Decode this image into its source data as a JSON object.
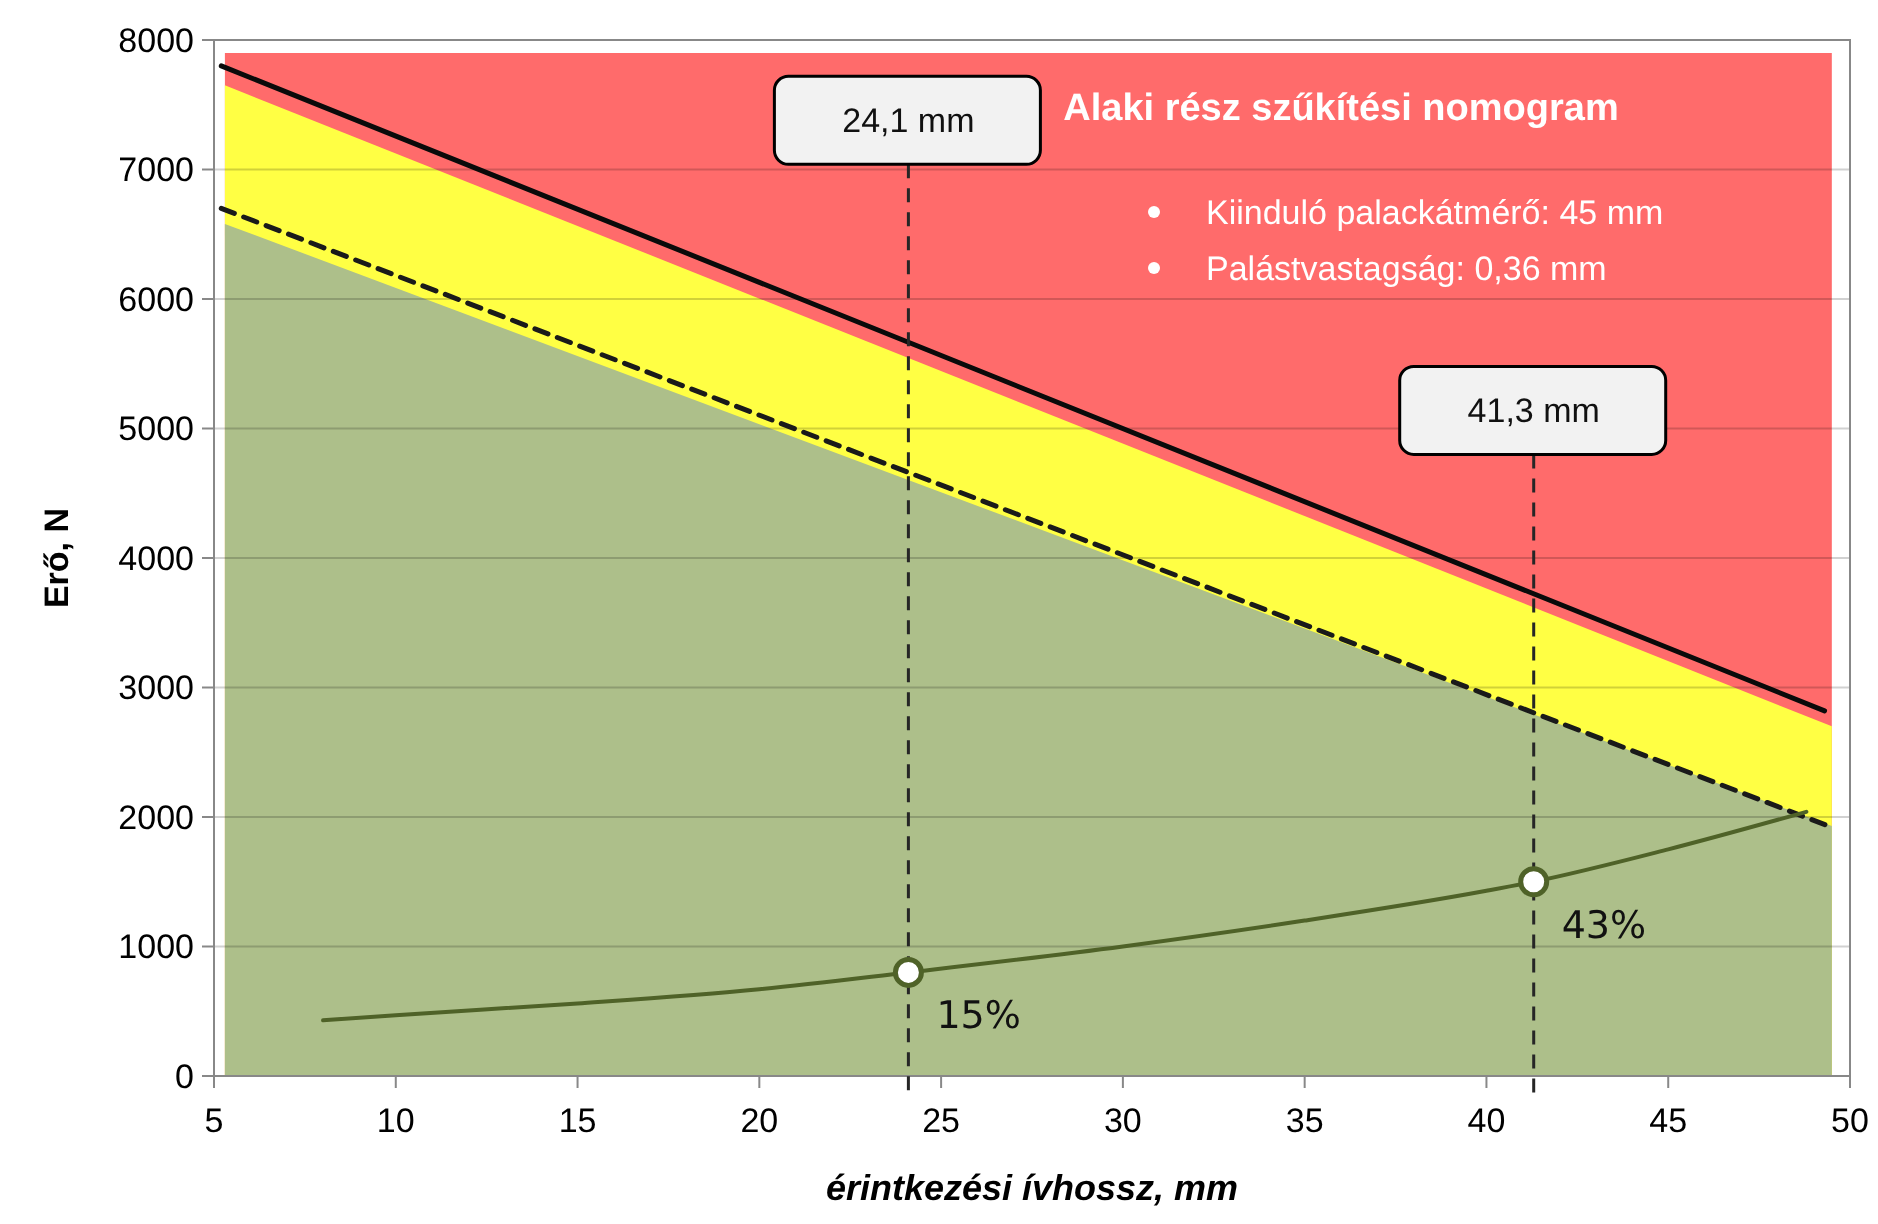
{
  "chart_data": {
    "type": "line",
    "title": "Alaki rész szűkítési nomogram",
    "xlabel": "érintkezési ívhossz, mm",
    "ylabel": "Erő, N",
    "xlim": [
      5,
      50
    ],
    "ylim": [
      0,
      8000
    ],
    "xticks": [
      5,
      10,
      15,
      20,
      25,
      30,
      35,
      40,
      45,
      50
    ],
    "yticks": [
      0,
      1000,
      2000,
      3000,
      4000,
      5000,
      6000,
      7000,
      8000
    ],
    "grid": "y",
    "series": [
      {
        "type": "area",
        "color": "#ff6b6b",
        "x": [
          5.3,
          49.5
        ],
        "values": [
          7900,
          7900
        ]
      },
      {
        "type": "area",
        "color": "#ffff44",
        "x": [
          5.3,
          49.5
        ],
        "values": [
          7650,
          2700
        ]
      },
      {
        "type": "area",
        "color": "#adbf8a",
        "x": [
          5.3,
          49.5
        ],
        "values": [
          6580,
          1930
        ]
      },
      {
        "color": "#0a0a0a",
        "line_style": "solid",
        "x": [
          5.2,
          49.3
        ],
        "values": [
          7800,
          2820
        ]
      },
      {
        "color": "#1a1a1a",
        "line_style": "dashed",
        "x": [
          5.2,
          49.5
        ],
        "values": [
          6700,
          1920
        ]
      },
      {
        "color": "#4f6228",
        "line_style": "solid",
        "x": [
          8,
          10,
          15,
          20,
          24.1,
          30,
          35,
          40,
          41.3,
          45,
          48.8
        ],
        "values": [
          430,
          470,
          560,
          670,
          800,
          1000,
          1200,
          1430,
          1500,
          1750,
          2040
        ]
      },
      {
        "type": "scatter",
        "color": "#4f6228",
        "marker": "circle",
        "x": [
          24.1,
          41.3
        ],
        "values": [
          800,
          1500
        ]
      }
    ],
    "ref_lines": [
      {
        "axis": "x",
        "value": 24.1,
        "label": "24,1 mm",
        "line_style": "dashed",
        "color": "#262626"
      },
      {
        "axis": "x",
        "value": 41.3,
        "label": "41,3 mm",
        "line_style": "dashed",
        "color": "#262626"
      }
    ],
    "annotations": [
      "Kiinduló palackátmérő: 45 mm",
      "Palástvastagság: 0,36 mm",
      {
        "text": "15%",
        "x": 24.1,
        "y": 800
      },
      {
        "text": "43%",
        "x": 41.3,
        "y": 1500
      }
    ]
  }
}
